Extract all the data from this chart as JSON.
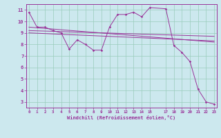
{
  "xlabel": "Windchill (Refroidissement éolien,°C)",
  "bg_color": "#cce8ee",
  "grid_color": "#99ccbb",
  "line_color": "#993399",
  "spine_color": "#993399",
  "x_ticks": [
    0,
    1,
    2,
    3,
    4,
    5,
    6,
    7,
    8,
    9,
    10,
    11,
    12,
    13,
    14,
    15,
    17,
    18,
    19,
    20,
    21,
    22,
    23
  ],
  "ylim": [
    2.5,
    11.5
  ],
  "xlim": [
    -0.3,
    23.3
  ],
  "yticks": [
    3,
    4,
    5,
    6,
    7,
    8,
    9,
    10,
    11
  ],
  "line1_x": [
    0,
    1,
    2,
    3,
    4,
    5,
    6,
    7,
    8,
    9,
    10,
    11,
    12,
    13,
    14,
    15,
    17,
    18,
    19,
    20,
    21,
    22,
    23
  ],
  "line1_y": [
    10.8,
    9.5,
    9.5,
    9.2,
    9.0,
    7.6,
    8.4,
    8.0,
    7.5,
    7.5,
    9.5,
    10.6,
    10.6,
    10.8,
    10.4,
    11.2,
    11.1,
    7.9,
    7.3,
    6.5,
    4.1,
    3.0,
    2.8
  ],
  "line2_x": [
    0,
    23
  ],
  "line2_y": [
    9.5,
    8.2
  ],
  "line3_x": [
    0,
    23
  ],
  "line3_y": [
    9.2,
    8.7
  ],
  "line4_x": [
    0,
    23
  ],
  "line4_y": [
    9.0,
    8.3
  ]
}
